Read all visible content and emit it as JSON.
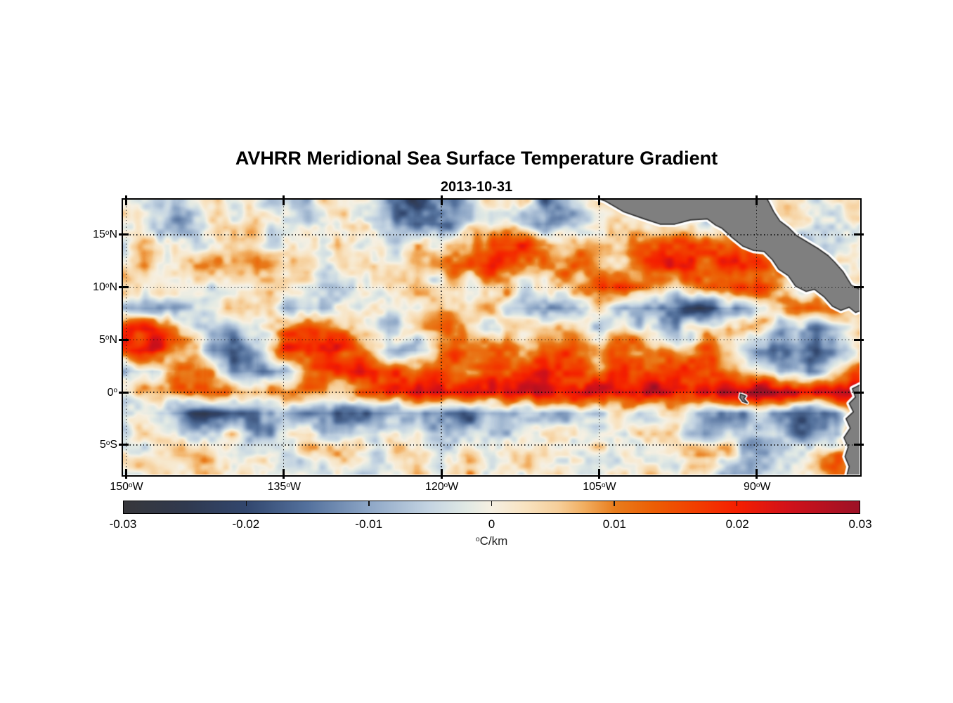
{
  "page": {
    "background": "#ffffff"
  },
  "chart_data": {
    "type": "heatmap",
    "title": "AVHRR Meridional Sea Surface Temperature Gradient",
    "subtitle": "2013-10-31",
    "x_axis": {
      "tick_labels": [
        "150°W",
        "135°W",
        "120°W",
        "105°W",
        "90°W"
      ],
      "tick_lons": [
        -150,
        -135,
        -120,
        -105,
        -90
      ],
      "range_lon": [
        -150.3,
        -80.22
      ]
    },
    "y_axis": {
      "tick_labels": [
        "15°N",
        "10°N",
        "5°N",
        "0°",
        "5°S"
      ],
      "tick_lats": [
        15,
        10,
        5,
        0,
        -5
      ],
      "range_lat": [
        -7.81,
        18.33
      ]
    },
    "grid": {
      "on": true,
      "style": "dotted",
      "color": "#141414"
    },
    "colorbar": {
      "orientation": "horizontal",
      "position": "bottom",
      "min": -0.03,
      "max": 0.03,
      "tick_labels": [
        "-0.03",
        "-0.02",
        "-0.01",
        "0",
        "0.01",
        "0.02",
        "0.03"
      ],
      "tick_values": [
        -0.03,
        -0.02,
        -0.01,
        0,
        0.01,
        0.02,
        0.03
      ],
      "unit_label": "°C/km"
    },
    "colormap": [
      {
        "t": 0.0,
        "hex": "#37373b"
      },
      {
        "t": 0.085,
        "hex": "#30394f"
      },
      {
        "t": 0.167,
        "hex": "#32476e"
      },
      {
        "t": 0.25,
        "hex": "#54719d"
      },
      {
        "t": 0.333,
        "hex": "#8da6c6"
      },
      {
        "t": 0.415,
        "hex": "#c4d4e2"
      },
      {
        "t": 0.465,
        "hex": "#e0e9e4"
      },
      {
        "t": 0.5,
        "hex": "#f6f0e2"
      },
      {
        "t": 0.545,
        "hex": "#f8e3c1"
      },
      {
        "t": 0.59,
        "hex": "#f6cf9b"
      },
      {
        "t": 0.625,
        "hex": "#f2af62"
      },
      {
        "t": 0.667,
        "hex": "#e87d1d"
      },
      {
        "t": 0.72,
        "hex": "#ec5e04"
      },
      {
        "t": 0.78,
        "hex": "#f23d00"
      },
      {
        "t": 0.833,
        "hex": "#f51f00"
      },
      {
        "t": 0.9,
        "hex": "#d31119"
      },
      {
        "t": 1.0,
        "hex": "#9c1126"
      }
    ],
    "field": {
      "units": "°C/km",
      "value_scale": 0.001,
      "lons": [
        -150,
        -147.5,
        -145,
        -142.5,
        -140,
        -137.5,
        -135,
        -132.5,
        -130,
        -127.5,
        -125,
        -122.5,
        -120,
        -117.5,
        -115,
        -112.5,
        -110,
        -107.5,
        -105,
        -102.5,
        -100,
        -97.5,
        -95,
        -92.5,
        -90,
        -87.5,
        -85,
        -82.5,
        -80
      ],
      "lats": [
        18,
        16,
        14,
        12,
        10,
        8,
        6,
        4,
        2,
        0,
        -2,
        -4,
        -6,
        -8
      ],
      "values": [
        [
          -2,
          -4,
          -8,
          -3,
          2,
          -5,
          -10,
          -4,
          3,
          -2,
          -14,
          -18,
          -12,
          -6,
          -2,
          2,
          -14,
          -8,
          2,
          0,
          0,
          0,
          0,
          0,
          0,
          0,
          0,
          0,
          0
        ],
        [
          0,
          -3,
          -6,
          -2,
          3,
          2,
          -4,
          -8,
          -3,
          2,
          -6,
          -20,
          -16,
          -4,
          3,
          -2,
          -12,
          -5,
          3,
          6,
          4,
          2,
          0,
          0,
          0,
          0,
          0,
          0,
          0
        ],
        [
          2,
          4,
          -2,
          3,
          8,
          5,
          -3,
          2,
          5,
          -2,
          -4,
          3,
          4,
          8,
          20,
          18,
          10,
          6,
          5,
          10,
          14,
          16,
          16,
          12,
          6,
          -4,
          -8,
          -3,
          4
        ],
        [
          4,
          6,
          3,
          6,
          10,
          12,
          5,
          3,
          -2,
          4,
          6,
          3,
          8,
          12,
          16,
          10,
          6,
          12,
          8,
          6,
          16,
          18,
          14,
          18,
          14,
          8,
          2,
          -3,
          -6
        ],
        [
          2,
          -2,
          -6,
          -3,
          5,
          8,
          3,
          -4,
          -8,
          -2,
          4,
          6,
          -3,
          3,
          6,
          3,
          -2,
          8,
          18,
          22,
          12,
          4,
          16,
          22,
          12,
          6,
          3,
          -2,
          2
        ],
        [
          -4,
          -8,
          -4,
          2,
          6,
          3,
          -6,
          -10,
          -5,
          2,
          -3,
          3,
          5,
          -2,
          3,
          -4,
          -12,
          -6,
          3,
          -8,
          -14,
          -18,
          -22,
          -14,
          -4,
          12,
          8,
          10,
          6
        ],
        [
          14,
          20,
          10,
          -3,
          -8,
          -4,
          10,
          16,
          8,
          3,
          -4,
          6,
          12,
          6,
          -3,
          3,
          6,
          3,
          -2,
          3,
          -4,
          -6,
          3,
          8,
          4,
          -8,
          -14,
          -6,
          10
        ],
        [
          18,
          22,
          12,
          -6,
          -14,
          -8,
          14,
          20,
          24,
          10,
          -4,
          -10,
          8,
          14,
          18,
          12,
          8,
          14,
          10,
          14,
          10,
          6,
          12,
          8,
          -6,
          -12,
          -18,
          -8,
          6
        ],
        [
          -6,
          -10,
          8,
          16,
          -8,
          -16,
          -6,
          10,
          16,
          20,
          14,
          8,
          16,
          12,
          18,
          14,
          18,
          16,
          12,
          18,
          14,
          18,
          16,
          12,
          8,
          -4,
          -10,
          4,
          12
        ],
        [
          3,
          6,
          14,
          20,
          12,
          6,
          14,
          10,
          6,
          18,
          22,
          20,
          24,
          22,
          20,
          24,
          22,
          26,
          24,
          22,
          26,
          24,
          28,
          26,
          29,
          28,
          25,
          29,
          27
        ],
        [
          -6,
          -8,
          -16,
          -18,
          -14,
          -16,
          -10,
          -14,
          -18,
          -16,
          -12,
          -14,
          -16,
          -14,
          -12,
          -8,
          -4,
          -8,
          -4,
          3,
          -3,
          4,
          -6,
          -12,
          -8,
          -16,
          -20,
          -10,
          18
        ],
        [
          -3,
          3,
          -6,
          -3,
          4,
          -8,
          -4,
          3,
          -6,
          -3,
          4,
          -3,
          -6,
          -10,
          -6,
          -3,
          3,
          -3,
          4,
          -4,
          3,
          -3,
          -8,
          -4,
          -10,
          -6,
          -14,
          -8,
          14
        ],
        [
          2,
          -3,
          4,
          6,
          -3,
          3,
          -4,
          2,
          4,
          -2,
          3,
          5,
          -3,
          2,
          -4,
          3,
          6,
          3,
          -3,
          3,
          -4,
          -2,
          5,
          3,
          -3,
          -8,
          -4,
          12,
          16
        ],
        [
          -2,
          3,
          -3,
          2,
          4,
          -2,
          3,
          -3,
          2,
          -4,
          2,
          3,
          -2,
          4,
          2,
          -3,
          3,
          2,
          -2,
          3,
          2,
          -3,
          2,
          -8,
          -10,
          -6,
          4,
          8,
          6
        ]
      ]
    },
    "land": {
      "fill": "#7f7f7f",
      "outline": "#2e2e2e",
      "halo": "#ffffff",
      "polygons": [
        {
          "name": "central-america",
          "lonlat": [
            [
              -105.6,
              18.6
            ],
            [
              -104.4,
              18.2
            ],
            [
              -102.7,
              17.2
            ],
            [
              -100.7,
              16.5
            ],
            [
              -99.2,
              16.0
            ],
            [
              -97.8,
              16.0
            ],
            [
              -96.3,
              16.4
            ],
            [
              -94.7,
              16.5
            ],
            [
              -93.9,
              15.9
            ],
            [
              -93.3,
              15.6
            ],
            [
              -92.3,
              14.7
            ],
            [
              -91.3,
              13.9
            ],
            [
              -90.3,
              13.5
            ],
            [
              -89.3,
              13.4
            ],
            [
              -88.5,
              12.6
            ],
            [
              -87.9,
              11.7
            ],
            [
              -87.0,
              11.1
            ],
            [
              -86.3,
              10.1
            ],
            [
              -85.3,
              9.6
            ],
            [
              -84.5,
              9.8
            ],
            [
              -83.6,
              9.1
            ],
            [
              -82.8,
              8.2
            ],
            [
              -82.0,
              7.8
            ],
            [
              -81.2,
              8.1
            ],
            [
              -80.6,
              7.6
            ],
            [
              -79.8,
              7.9
            ],
            [
              -79.8,
              9.6
            ],
            [
              -81.0,
              10.2
            ],
            [
              -81.8,
              11.5
            ],
            [
              -82.6,
              12.4
            ],
            [
              -83.2,
              13.0
            ],
            [
              -84.2,
              13.7
            ],
            [
              -85.2,
              14.3
            ],
            [
              -86.2,
              14.9
            ],
            [
              -87.0,
              15.7
            ],
            [
              -87.8,
              16.3
            ],
            [
              -88.4,
              17.2
            ],
            [
              -88.8,
              18.0
            ],
            [
              -89.2,
              18.7
            ]
          ]
        },
        {
          "name": "south-america",
          "lonlat": [
            [
              -78.5,
              1.2
            ],
            [
              -80.2,
              0.7
            ],
            [
              -80.9,
              0.35
            ],
            [
              -80.6,
              -0.45
            ],
            [
              -81.2,
              -1.05
            ],
            [
              -80.8,
              -1.85
            ],
            [
              -81.5,
              -2.5
            ],
            [
              -81.1,
              -3.4
            ],
            [
              -81.7,
              -4.3
            ],
            [
              -81.3,
              -5.2
            ],
            [
              -81.6,
              -6.1
            ],
            [
              -81.2,
              -7.05
            ],
            [
              -81.5,
              -8.2
            ],
            [
              -78.5,
              -8.2
            ]
          ]
        },
        {
          "name": "galapagos-islands",
          "lonlat": [
            [
              -91.55,
              -0.15
            ],
            [
              -91.05,
              -0.35
            ],
            [
              -91.25,
              -0.6
            ],
            [
              -90.9,
              -1.0
            ],
            [
              -91.35,
              -0.85
            ],
            [
              -91.6,
              -0.5
            ]
          ]
        }
      ]
    }
  }
}
